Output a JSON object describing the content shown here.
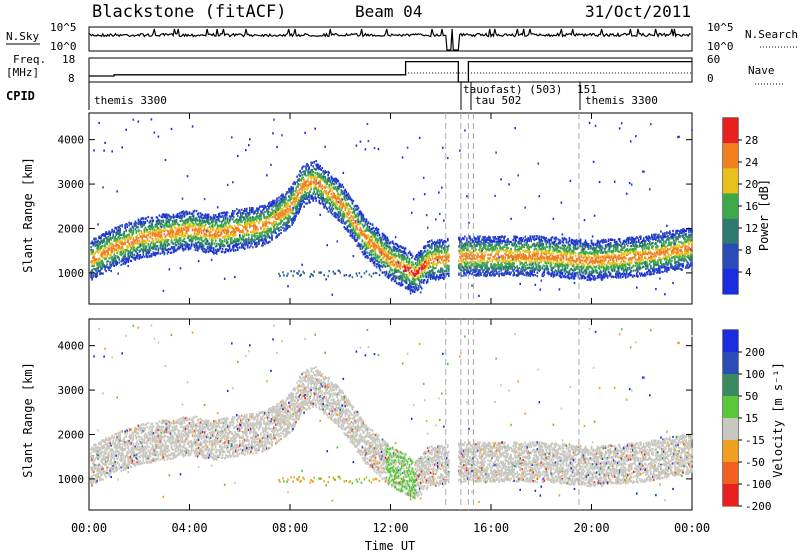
{
  "header": {
    "title": "Blackstone (fitACF)",
    "beam": "Beam 04",
    "date": "31/Oct/2011"
  },
  "noise_panel": {
    "left_label": "N.Sky",
    "left_ticks": [
      "10^5",
      "10^0"
    ],
    "right_ticks": [
      "10^5",
      "10^0"
    ],
    "right_label": "N.Search"
  },
  "freq_panel": {
    "left_label_1": "Freq.",
    "left_label_2": "[MHz]",
    "left_ticks": [
      "18",
      "8"
    ],
    "right_ticks": [
      "60",
      "0"
    ],
    "right_label": "Nave"
  },
  "cpid_panel": {
    "label": "CPID",
    "entries": [
      "themis 3300",
      "tauofast) (503)",
      "151",
      "tau 502",
      "themis 3300"
    ]
  },
  "x_axis": {
    "ticks": [
      "00:00",
      "04:00",
      "08:00",
      "12:00",
      "16:00",
      "20:00",
      "00:00"
    ],
    "label": "Time UT"
  },
  "power_panel": {
    "ylabel": "Slant Range [km]",
    "yticks": [
      "1000",
      "2000",
      "3000",
      "4000"
    ],
    "colorbar_label": "Power [dB]",
    "colorbar_ticks": [
      "4",
      "8",
      "12",
      "16",
      "20",
      "24",
      "28"
    ],
    "colors": [
      "#1a2ee0",
      "#2a4cb8",
      "#2f7a70",
      "#3ca848",
      "#e8c01c",
      "#f08020",
      "#e82020"
    ]
  },
  "velocity_panel": {
    "ylabel": "Slant Range [km]",
    "yticks": [
      "1000",
      "2000",
      "3000",
      "4000"
    ],
    "colorbar_label": "Velocity [m s⁻¹]",
    "colorbar_ticks": [
      "200",
      "100",
      "50",
      "15",
      "-15",
      "-50",
      "-100",
      "-200"
    ],
    "colors": [
      "#1a2ee0",
      "#2a4cb8",
      "#3a8a60",
      "#58c838",
      "#c8c8c0",
      "#f0a020",
      "#f06020",
      "#e82020"
    ]
  },
  "chart_data": [
    {
      "type": "line",
      "title": "Blackstone (fitACF)",
      "xlabel": "Time UT",
      "series": [
        {
          "name": "N.Sky",
          "x_hours": [
            0,
            14.3,
            14.7,
            15.2,
            24
          ],
          "values_log10": [
            4.3,
            4.3,
            0,
            4.3,
            4.3
          ]
        }
      ],
      "yticks": [
        "10^0",
        "10^5"
      ]
    },
    {
      "type": "line",
      "ylabel": "[MHz]",
      "series": [
        {
          "name": "Freq.",
          "x_hours": [
            0,
            1,
            12.5,
            12.6,
            14.3,
            14.7,
            15.1,
            24
          ],
          "values": [
            10.5,
            11,
            11,
            16.5,
            16.5,
            8,
            16.5,
            16.5
          ]
        }
      ],
      "ylim": [
        8,
        18
      ]
    },
    {
      "type": "heatmap",
      "title": "Power",
      "ylabel": "Slant Range [km]",
      "xlabel": "Time UT",
      "xlim_hours": [
        0,
        24
      ],
      "ylim_km": [
        300,
        4600
      ],
      "band_center_km": [
        [
          0,
          1300
        ],
        [
          1,
          1600
        ],
        [
          2,
          1800
        ],
        [
          4,
          2000
        ],
        [
          5,
          1900
        ],
        [
          6,
          2000
        ],
        [
          7,
          2100
        ],
        [
          8,
          2500
        ],
        [
          8.5,
          3000
        ],
        [
          9,
          3100
        ],
        [
          10,
          2600
        ],
        [
          11,
          1800
        ],
        [
          12,
          1300
        ],
        [
          13,
          1000
        ],
        [
          13.5,
          1300
        ],
        [
          15,
          1400
        ],
        [
          18,
          1400
        ],
        [
          20,
          1300
        ],
        [
          22,
          1400
        ],
        [
          24,
          1600
        ]
      ],
      "colorbar": {
        "label": "Power [dB]",
        "range": [
          0,
          30
        ]
      }
    },
    {
      "type": "heatmap",
      "title": "Velocity",
      "ylabel": "Slant Range [km]",
      "xlabel": "Time UT",
      "xlim_hours": [
        0,
        24
      ],
      "ylim_km": [
        300,
        4600
      ],
      "colorbar": {
        "label": "Velocity [m s⁻¹]",
        "range": [
          -200,
          200
        ]
      }
    }
  ]
}
